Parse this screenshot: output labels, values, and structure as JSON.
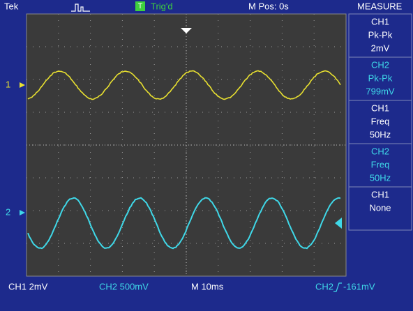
{
  "header": {
    "brand": "Tek",
    "trigger_badge": "T",
    "trigger_status": "Trig'd",
    "position": "M Pos: 0s",
    "menu_title": "MEASURE"
  },
  "markers": {
    "ch1": "1",
    "ch2": "2"
  },
  "measure": [
    {
      "source": "CH1",
      "kind": "Pk-Pk",
      "value": "2mV"
    },
    {
      "source": "CH2",
      "kind": "Pk-Pk",
      "value": "799mV"
    },
    {
      "source": "CH1",
      "kind": "Freq",
      "value": "50Hz"
    },
    {
      "source": "CH2",
      "kind": "Freq",
      "value": "50Hz"
    },
    {
      "source": "CH1",
      "kind": "None"
    }
  ],
  "footer": {
    "ch1": "CH1 2mV",
    "ch2": "CH2 500mV",
    "timebase": "M 10ms",
    "trigger_source": "CH2",
    "trigger_level": "-161mV"
  }
}
